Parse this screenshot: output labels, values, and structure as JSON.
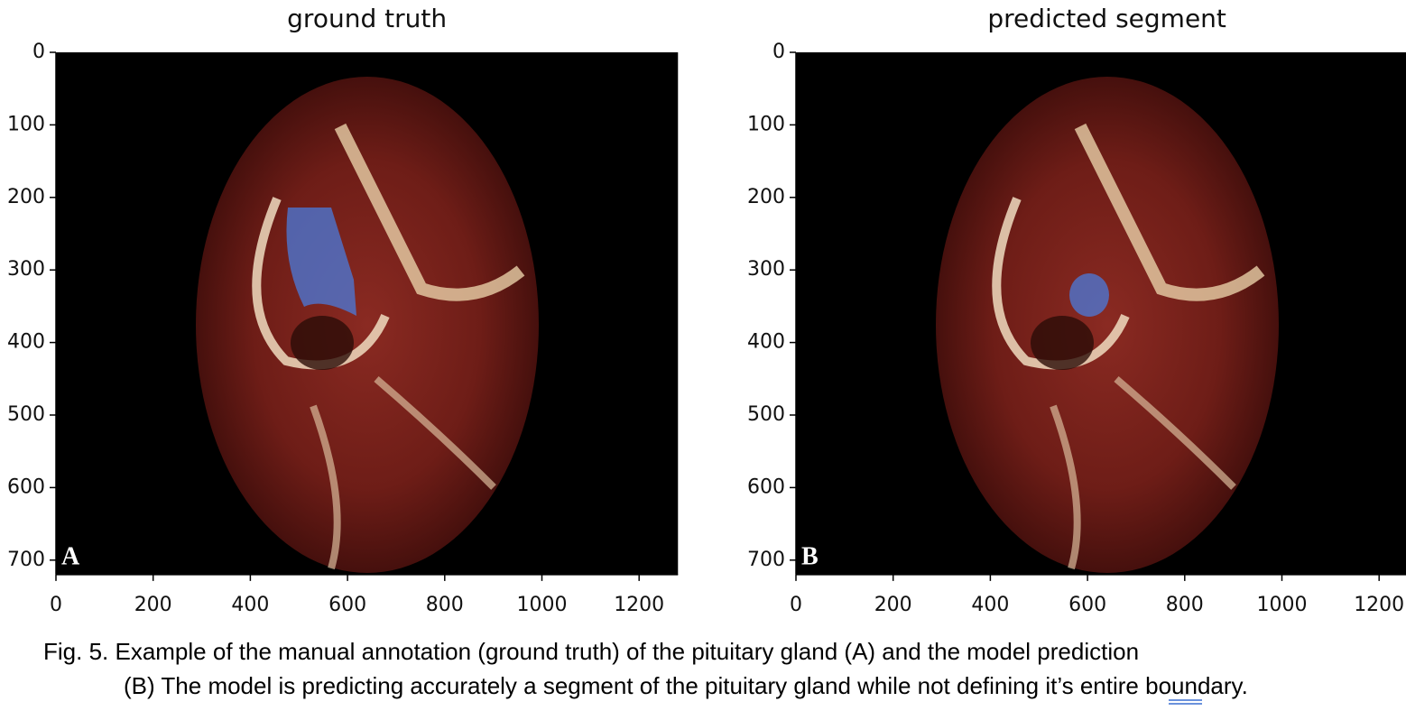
{
  "figure": {
    "panels": [
      {
        "title": "ground truth",
        "letter": "A",
        "xlim": [
          0,
          1280
        ],
        "ylim": [
          720,
          0
        ],
        "xticks": [
          0,
          200,
          400,
          600,
          800,
          1000,
          1200
        ],
        "yticks": [
          0,
          100,
          200,
          300,
          400,
          500,
          600,
          700
        ]
      },
      {
        "title": "predicted segment",
        "letter": "B",
        "xlim": [
          0,
          1280
        ],
        "ylim": [
          720,
          0
        ],
        "xticks": [
          0,
          200,
          400,
          600,
          800,
          1000,
          1200
        ],
        "yticks": [
          0,
          100,
          200,
          300,
          400,
          500,
          600,
          700
        ]
      }
    ],
    "caption": {
      "line1": "Fig. 5. Example of the manual annotation (ground truth) of the pituitary gland (A) and the model prediction",
      "line2": [
        "(B) The model is predicting accurately a segment of the pituitary gland while not defining ",
        "it’s",
        " entire boundary."
      ]
    }
  }
}
